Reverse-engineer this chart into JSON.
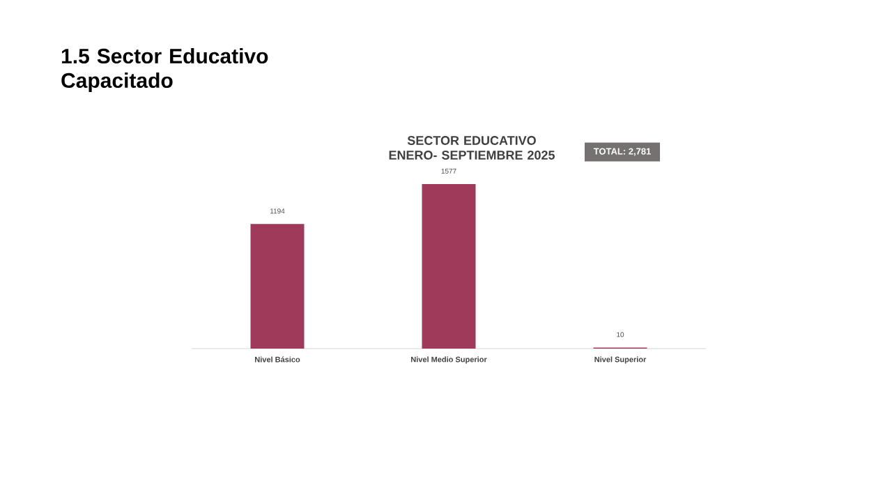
{
  "chart_data": {
    "type": "bar",
    "title": "1.5  Sector Educativo Capacitado",
    "subtitle": "SECTOR EDUCATIVO ENERO- SEPTIEMBRE 2025",
    "categories": [
      "Nivel Básico",
      "Nivel Medio Superior",
      "Nivel Superior"
    ],
    "values": [
      1194,
      1577,
      10
    ],
    "color": "#a03a5a",
    "data_labels": true,
    "annotations": [
      "TOTAL: 2,781"
    ]
  }
}
